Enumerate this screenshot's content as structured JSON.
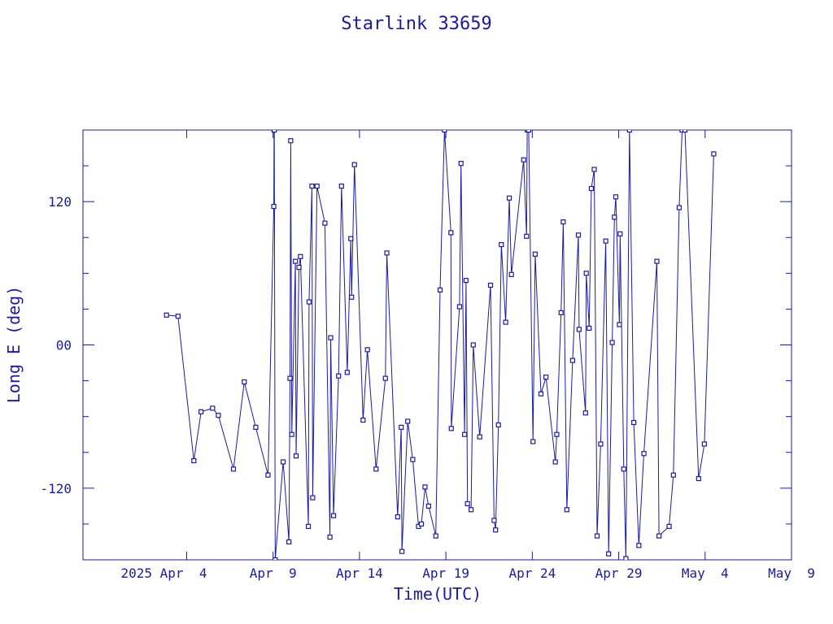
{
  "chart_data": {
    "type": "line",
    "title": "Starlink 33659",
    "xlabel": "Time(UTC)",
    "ylabel": "Long E (deg)",
    "xlim": [
      "2025-03-29",
      "2025-05-09"
    ],
    "ylim": [
      -180,
      180
    ],
    "x_ticks": [
      {
        "date": "2025-04-04",
        "label": "2025 Apr  4"
      },
      {
        "date": "2025-04-09",
        "label": "Apr  9"
      },
      {
        "date": "2025-04-14",
        "label": "Apr 14"
      },
      {
        "date": "2025-04-19",
        "label": "Apr 19"
      },
      {
        "date": "2025-04-24",
        "label": "Apr 24"
      },
      {
        "date": "2025-04-29",
        "label": "Apr 29"
      },
      {
        "date": "2025-05-04",
        "label": "May  4"
      },
      {
        "date": "2025-05-09",
        "label": "May  9"
      }
    ],
    "y_ticks": [
      {
        "value": 120,
        "label": "120"
      },
      {
        "value": 0,
        "label": "00"
      },
      {
        "value": -120,
        "label": "-120"
      }
    ],
    "grid": false,
    "colors": {
      "line": "#1a1aa8",
      "axes": "#1a1aa8",
      "background": "#ffffff"
    },
    "series": [
      {
        "x": [
          "2025-04-02T20:00",
          "2025-04-03T12:00",
          "2025-04-04T10:00",
          "2025-04-04T20:00",
          "2025-04-05T12:00",
          "2025-04-05T20:00",
          "2025-04-06T17:00",
          "2025-04-07T08:00",
          "2025-04-08T00:00",
          "2025-04-08T17:00",
          "2025-04-09T01:00",
          "2025-04-09T01:20",
          "2025-04-09T01:40",
          "2025-04-09T03:00",
          "2025-04-09T14:00",
          "2025-04-09T22:00",
          "2025-04-09T23:30",
          "2025-04-10T00:30",
          "2025-04-10T02:00",
          "2025-04-10T07:00",
          "2025-04-10T08:00",
          "2025-04-10T12:00",
          "2025-04-10T14:00",
          "2025-04-11T01:00",
          "2025-04-11T02:00",
          "2025-04-11T06:00",
          "2025-04-11T07:00",
          "2025-04-11T13:00",
          "2025-04-12T00:00",
          "2025-04-12T07:00",
          "2025-04-12T08:00",
          "2025-04-12T12:00",
          "2025-04-12T19:00",
          "2025-04-12T23:00",
          "2025-04-13T07:00",
          "2025-04-13T12:00",
          "2025-04-13T13:00",
          "2025-04-13T17:00",
          "2025-04-14T05:00",
          "2025-04-14T11:00",
          "2025-04-14T23:00",
          "2025-04-15T12:00",
          "2025-04-15T14:00",
          "2025-04-16T05:00",
          "2025-04-16T10:00",
          "2025-04-16T11:00",
          "2025-04-16T19:00",
          "2025-04-17T02:00",
          "2025-04-17T10:00",
          "2025-04-17T14:00",
          "2025-04-17T19:00",
          "2025-04-18T00:00",
          "2025-04-18T10:00",
          "2025-04-18T16:00",
          "2025-04-18T22:00",
          "2025-04-19T07:00",
          "2025-04-19T07:30",
          "2025-04-19T19:00",
          "2025-04-19T21:00",
          "2025-04-20T02:00",
          "2025-04-20T04:00",
          "2025-04-20T06:00",
          "2025-04-20T11:00",
          "2025-04-20T14:00",
          "2025-04-20T23:00",
          "2025-04-21T14:00",
          "2025-04-21T19:00",
          "2025-04-21T21:00",
          "2025-04-22T01:00",
          "2025-04-22T05:00",
          "2025-04-22T11:00",
          "2025-04-22T16:00",
          "2025-04-22T19:00",
          "2025-04-23T12:00",
          "2025-04-23T16:00",
          "2025-04-23T17:00",
          "2025-04-23T19:00",
          "2025-04-24T01:00",
          "2025-04-24T04:00",
          "2025-04-24T12:00",
          "2025-04-24T19:00",
          "2025-04-25T08:00",
          "2025-04-25T10:00",
          "2025-04-25T16:00",
          "2025-04-25T19:00",
          "2025-04-26T00:00",
          "2025-04-26T08:00",
          "2025-04-26T16:00",
          "2025-04-26T17:00",
          "2025-04-27T02:00",
          "2025-04-27T03:00",
          "2025-04-27T07:00",
          "2025-04-27T10:00",
          "2025-04-27T14:00",
          "2025-04-27T18:00",
          "2025-04-27T23:00",
          "2025-04-28T06:00",
          "2025-04-28T10:00",
          "2025-04-28T15:00",
          "2025-04-28T18:00",
          "2025-04-28T20:00",
          "2025-04-29T01:00",
          "2025-04-29T02:00",
          "2025-04-29T07:00",
          "2025-04-29T10:00",
          "2025-04-29T15:00",
          "2025-04-29T21:00",
          "2025-04-30T04:00",
          "2025-04-30T11:00",
          "2025-05-01T05:00",
          "2025-05-01T08:00",
          "2025-05-01T22:00",
          "2025-05-02T04:00",
          "2025-05-02T12:00",
          "2025-05-02T16:00",
          "2025-05-02T20:00",
          "2025-05-03T15:00",
          "2025-05-03T23:00",
          "2025-05-04T12:00"
        ],
        "y": [
          25,
          24,
          -97,
          -56,
          -53,
          -59,
          -104,
          -31,
          -69,
          -109,
          116,
          180,
          180,
          -180,
          -98,
          -165,
          -28,
          171,
          -75,
          70,
          -93,
          65,
          74,
          -152,
          36,
          133,
          -128,
          133,
          102,
          -161,
          6,
          -143,
          -26,
          133,
          -23,
          89,
          40,
          151,
          -63,
          -4,
          -104,
          -28,
          77,
          -144,
          -69,
          -173,
          -64,
          -96,
          -152,
          -150,
          -119,
          -135,
          -160,
          46,
          180,
          94,
          -70,
          32,
          152,
          -75,
          54,
          -133,
          -138,
          0,
          -77,
          50,
          -147,
          -155,
          -67,
          84,
          19,
          123,
          59,
          155,
          91,
          180,
          180,
          -81,
          76,
          -41,
          -27,
          -98,
          -75,
          27,
          103,
          -138,
          -13,
          92,
          13,
          -57,
          60,
          14,
          131,
          147,
          -160,
          -83,
          87,
          -175,
          2,
          107,
          124,
          17,
          93,
          -104,
          -179,
          180,
          -65,
          -168,
          -91,
          70,
          -160,
          -152,
          -109,
          115,
          180,
          180,
          -112,
          -83,
          160
        ]
      }
    ]
  }
}
